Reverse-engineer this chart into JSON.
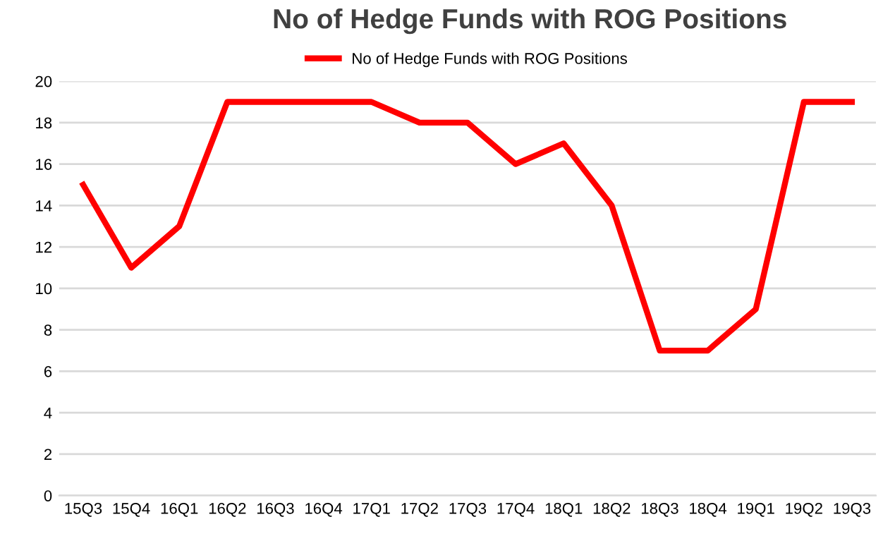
{
  "chart_data": {
    "type": "line",
    "title": "No of Hedge Funds with ROG Positions",
    "categories": [
      "15Q3",
      "15Q4",
      "16Q1",
      "16Q2",
      "16Q3",
      "16Q4",
      "17Q1",
      "17Q2",
      "17Q3",
      "17Q4",
      "18Q1",
      "18Q2",
      "18Q3",
      "18Q4",
      "19Q1",
      "19Q2",
      "19Q3"
    ],
    "series": [
      {
        "name": "No of Hedge Funds with ROG Positions",
        "color": "#ff0000",
        "values": [
          15,
          11,
          13,
          19,
          19,
          19,
          19,
          18,
          18,
          16,
          17,
          14,
          7,
          7,
          9,
          19,
          19
        ]
      }
    ],
    "ylim": [
      0,
      20
    ],
    "yticks": [
      0,
      2,
      4,
      6,
      8,
      10,
      12,
      14,
      16,
      18,
      20
    ],
    "grid": "y",
    "legend": "top",
    "marker": "none",
    "line_style": "solid"
  }
}
